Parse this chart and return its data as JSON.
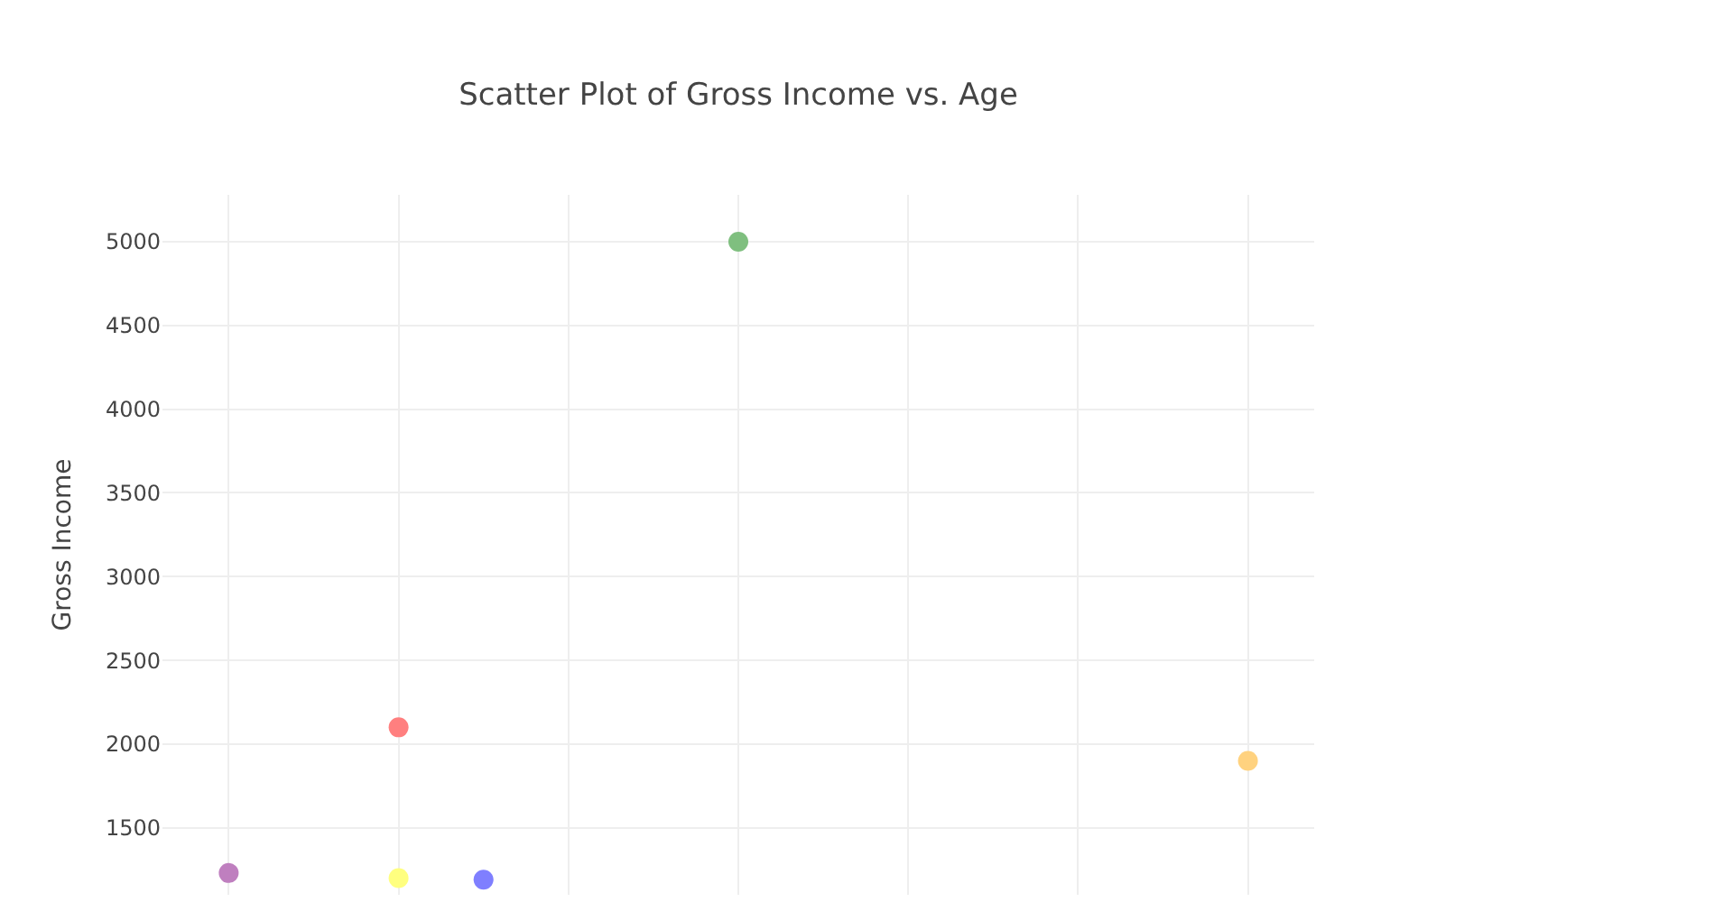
{
  "chart_data": {
    "type": "scatter",
    "title": "Scatter Plot of Gross Income vs. Age",
    "ylabel": "Gross Income",
    "categories": [
      null,
      null,
      null,
      null,
      null,
      null,
      null,
      null,
      null,
      null,
      null,
      null,
      null
    ],
    "series": [
      {
        "color": "#bf7fbf",
        "values": [
          1230,
          null,
          null,
          null,
          null,
          null,
          null,
          null,
          null,
          null,
          null,
          null,
          null
        ]
      },
      {
        "color": "#ff7f7f",
        "values": [
          null,
          null,
          2100,
          null,
          null,
          null,
          null,
          null,
          null,
          null,
          null,
          null,
          null
        ]
      },
      {
        "color": "#ffff7f",
        "values": [
          null,
          null,
          1200,
          null,
          null,
          null,
          null,
          null,
          null,
          null,
          null,
          null,
          null
        ]
      },
      {
        "color": "#7f7fff",
        "values": [
          null,
          null,
          null,
          1190,
          null,
          null,
          null,
          null,
          null,
          null,
          null,
          null,
          null
        ]
      },
      {
        "color": "#7fbf7f",
        "values": [
          null,
          null,
          null,
          null,
          null,
          null,
          5000,
          null,
          null,
          null,
          null,
          null,
          null
        ]
      },
      {
        "color": "#ffd27f",
        "values": [
          null,
          null,
          null,
          null,
          null,
          null,
          null,
          null,
          null,
          null,
          null,
          null,
          1900
        ]
      }
    ],
    "ylim": [
      1100,
      5280
    ],
    "yticks": [
      1500,
      2000,
      2500,
      3000,
      3500,
      4000,
      4500,
      5000
    ],
    "grid": true,
    "marker": "circle",
    "tick_labels": "y"
  }
}
